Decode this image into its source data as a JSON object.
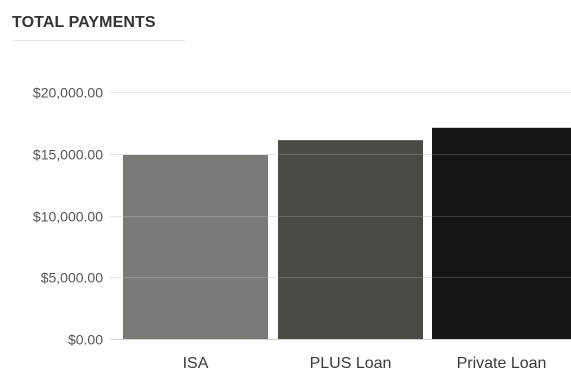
{
  "chart_data": {
    "type": "bar",
    "title": "TOTAL PAYMENTS",
    "categories": [
      "ISA",
      "PLUS Loan",
      "Private Loan"
    ],
    "values": [
      14900,
      16100,
      17100
    ],
    "colors": [
      "#7a7a76",
      "#4b4a45",
      "#151515"
    ],
    "ylim": [
      0,
      20000
    ],
    "yticks": [
      0,
      5000,
      10000,
      15000,
      20000
    ],
    "ytick_labels": [
      "$0.00",
      "$5,000.00",
      "$10,000.00",
      "$15,000.00",
      "$20,000.00"
    ],
    "grid": true,
    "legend": "none",
    "xlabel": "",
    "ylabel": ""
  }
}
